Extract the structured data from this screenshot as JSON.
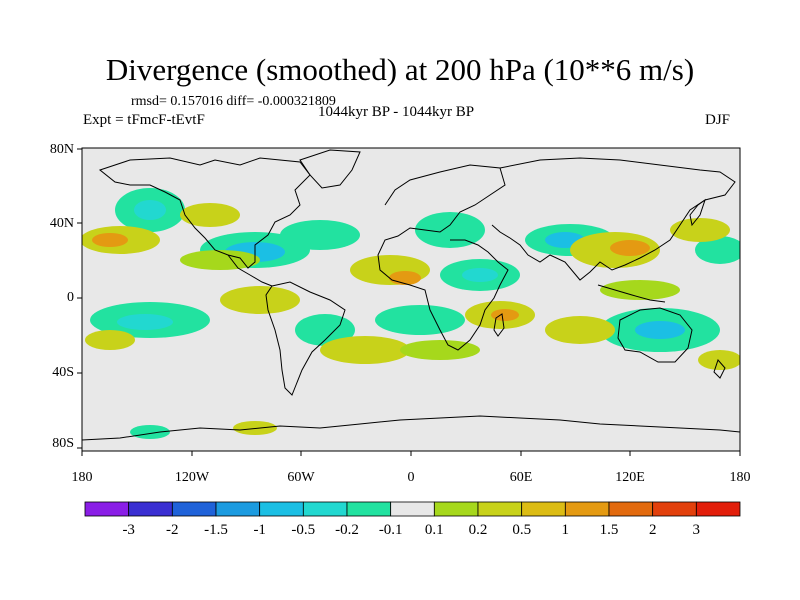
{
  "title": "Divergence (smoothed) at 200 hPa (10**6 m/s)",
  "stats_line": "rmsd= 0.157016 diff= -0.000321809",
  "experiment": "Expt = tFmcF-tEvtF",
  "period": "1044kyr BP - 1044kyr BP",
  "season": "DJF",
  "y_ticks": [
    "80N",
    "40N",
    "0",
    "40S",
    "80S"
  ],
  "x_ticks": [
    "180",
    "120W",
    "60W",
    "0",
    "60E",
    "120E",
    "180"
  ],
  "colorbar_labels": [
    "-3",
    "-2",
    "-1.5",
    "-1",
    "-0.5",
    "-0.2",
    "-0.1",
    "0.1",
    "0.2",
    "0.5",
    "1",
    "1.5",
    "2",
    "3"
  ],
  "colorbar_colors": [
    "#8a1ee6",
    "#3a2fd2",
    "#1f62d9",
    "#1c9be0",
    "#1bbfe4",
    "#22d8d0",
    "#22e2a0",
    "#e8e8e8",
    "#a6d81c",
    "#c8d21a",
    "#dcbc14",
    "#e49a12",
    "#e26a0e",
    "#e2400c",
    "#e21e0a"
  ],
  "map": {
    "background_color": "#e8e8e8"
  }
}
